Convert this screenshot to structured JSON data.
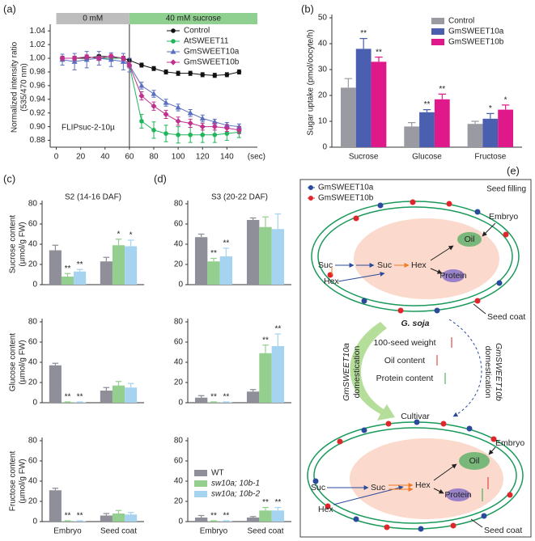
{
  "chart_data": [
    {
      "type": "line",
      "panel_label": "(a)",
      "ylabel": [
        "Normalized intensity ratio",
        "(535/470 nm)"
      ],
      "xlabel": "(sec)",
      "annotation": "FLIPsuc-2-10µ",
      "bands": [
        {
          "label": "0 mM",
          "from": 0,
          "to": 60,
          "color": "#bdbdbd"
        },
        {
          "label": "40 mM sucrose",
          "from": 60,
          "to": 165,
          "color": "#8fcf8f"
        }
      ],
      "x": [
        5,
        15,
        25,
        35,
        45,
        55,
        60,
        70,
        80,
        90,
        100,
        110,
        120,
        130,
        140,
        150
      ],
      "xlim": [
        -5,
        165
      ],
      "xticks": [
        0,
        20,
        40,
        60,
        80,
        100,
        120,
        140
      ],
      "ylim": [
        0.87,
        1.045
      ],
      "yticks": [
        0.88,
        {
          "value": 0.9,
          "label": "0.90"
        },
        0.92,
        0.94,
        0.96,
        0.98,
        {
          "value": 1.0,
          "label": "1.00"
        },
        1.02,
        1.04
      ],
      "legend": "upper right",
      "series": [
        {
          "name": "Control",
          "color": "#111111",
          "marker": "circle",
          "values": [
            1.0,
            1.0,
            1.0,
            1.003,
            1.002,
            1.0,
            0.997,
            0.99,
            0.985,
            0.98,
            0.978,
            0.978,
            0.976,
            0.975,
            0.976,
            0.98
          ],
          "errors": [
            0.002,
            0.002,
            0.002,
            0.002,
            0.002,
            0.002,
            0.002,
            0.003,
            0.003,
            0.003,
            0.003,
            0.003,
            0.003,
            0.003,
            0.003,
            0.003
          ]
        },
        {
          "name": "AtSWEET11",
          "color": "#1fb55a",
          "marker": "circle",
          "values": [
            1.0,
            1.0,
            1.002,
            1.0,
            1.0,
            1.0,
            0.99,
            0.908,
            0.895,
            0.89,
            0.888,
            0.888,
            0.888,
            0.888,
            0.89,
            0.892
          ],
          "errors": [
            0.003,
            0.003,
            0.002,
            0.003,
            0.002,
            0.003,
            0.004,
            0.01,
            0.012,
            0.012,
            0.012,
            0.011,
            0.011,
            0.011,
            0.01,
            0.008
          ]
        },
        {
          "name": "GmSWEET10a",
          "color": "#5a6fc0",
          "marker": "triangle",
          "values": [
            0.998,
            0.995,
            0.998,
            1.0,
            0.998,
            0.995,
            0.99,
            0.96,
            0.948,
            0.935,
            0.928,
            0.92,
            0.912,
            0.907,
            0.902,
            0.9
          ],
          "errors": [
            0.008,
            0.012,
            0.012,
            0.01,
            0.01,
            0.012,
            0.01,
            0.005,
            0.005,
            0.005,
            0.005,
            0.005,
            0.005,
            0.004,
            0.004,
            0.004
          ]
        },
        {
          "name": "GmSWEET10b",
          "color": "#c2308f",
          "marker": "diamond",
          "values": [
            1.0,
            1.0,
            1.002,
            1.0,
            1.003,
            1.0,
            0.99,
            0.945,
            0.93,
            0.918,
            0.908,
            0.905,
            0.9,
            0.9,
            0.898,
            0.895
          ],
          "errors": [
            0.003,
            0.003,
            0.003,
            0.003,
            0.003,
            0.003,
            0.004,
            0.006,
            0.006,
            0.006,
            0.006,
            0.006,
            0.005,
            0.005,
            0.005,
            0.005
          ]
        }
      ]
    },
    {
      "type": "bar",
      "panel_label": "(b)",
      "ylabel": [
        "Sugar uptake (pmol/oocyte/h)"
      ],
      "categories": [
        "Sucrose",
        "Glucose",
        "Fructose"
      ],
      "ylim": [
        0,
        50
      ],
      "yticks": [
        0,
        10,
        20,
        30,
        40,
        50
      ],
      "legend": "upper right",
      "series": [
        {
          "name": "Control",
          "color": "#9a9aa3",
          "values": [
            23,
            8,
            9
          ],
          "errors": [
            3.5,
            1.5,
            1
          ]
        },
        {
          "name": "GmSWEET10a",
          "color": "#4a5fb0",
          "values": [
            38,
            13.5,
            11
          ],
          "errors": [
            4,
            1,
            2
          ],
          "annotations": [
            "**",
            "**",
            "*"
          ]
        },
        {
          "name": "GmSWEET10b",
          "color": "#e0198a",
          "values": [
            33,
            18.5,
            14.5
          ],
          "errors": [
            1.8,
            2,
            1.8
          ],
          "annotations": [
            "**",
            "**",
            "*"
          ]
        }
      ]
    },
    {
      "type": "bar",
      "panel_label": "(c)",
      "title": "S2 (14-16 DAF)",
      "ylabel": [
        "Sucrose content",
        "(µmol/g FW)"
      ],
      "ylim": [
        0,
        80
      ],
      "yticks": [
        0,
        20,
        40,
        60,
        80
      ],
      "series": [
        {
          "color": "#8e8f99",
          "values": [
            34,
            23
          ],
          "errors": [
            5,
            4
          ]
        },
        {
          "color": "#95cf8f",
          "values": [
            8,
            39
          ],
          "errors": [
            3,
            6
          ],
          "annotations": [
            "**",
            "*"
          ]
        },
        {
          "color": "#a6d4f0",
          "values": [
            13,
            38
          ],
          "errors": [
            2,
            6
          ],
          "annotations": [
            "**",
            "*"
          ]
        }
      ]
    },
    {
      "type": "bar",
      "ylabel": [
        "Glucose content",
        "(µmol/g FW)"
      ],
      "ylim": [
        0,
        80
      ],
      "yticks": [
        0,
        20,
        40,
        60,
        80
      ],
      "series": [
        {
          "color": "#8e8f99",
          "values": [
            37,
            12
          ],
          "errors": [
            2,
            3
          ]
        },
        {
          "color": "#95cf8f",
          "values": [
            0.5,
            17
          ],
          "errors": [
            0.3,
            4
          ],
          "annotations": [
            "**",
            null
          ]
        },
        {
          "color": "#a6d4f0",
          "values": [
            0.5,
            15
          ],
          "errors": [
            0.3,
            4
          ],
          "annotations": [
            "**",
            null
          ]
        }
      ]
    },
    {
      "type": "bar",
      "ylabel": [
        "Fructose content",
        "(µmol/g FW)"
      ],
      "categories": [
        "Embryo",
        "Seed coat"
      ],
      "ylim": [
        0,
        80
      ],
      "yticks": [
        0,
        20,
        40,
        60,
        80
      ],
      "series": [
        {
          "color": "#8e8f99",
          "values": [
            31,
            6
          ],
          "errors": [
            2,
            2
          ]
        },
        {
          "color": "#95cf8f",
          "values": [
            0.5,
            8
          ],
          "errors": [
            0.3,
            3
          ],
          "annotations": [
            "**",
            null
          ]
        },
        {
          "color": "#a6d4f0",
          "values": [
            0.5,
            7
          ],
          "errors": [
            0.3,
            2
          ],
          "annotations": [
            "**",
            null
          ]
        }
      ]
    },
    {
      "type": "bar",
      "panel_label": "(d)",
      "title": "S3 (20-22 DAF)",
      "ylim": [
        0,
        80
      ],
      "yticks": [
        0,
        20,
        40,
        60,
        80
      ],
      "series": [
        {
          "color": "#8e8f99",
          "values": [
            47,
            64
          ],
          "errors": [
            3,
            2
          ]
        },
        {
          "color": "#95cf8f",
          "values": [
            23,
            57
          ],
          "errors": [
            3,
            10
          ],
          "annotations": [
            "**",
            null
          ]
        },
        {
          "color": "#a6d4f0",
          "values": [
            28,
            55
          ],
          "errors": [
            8,
            15
          ],
          "annotations": [
            "**",
            null
          ]
        }
      ]
    },
    {
      "type": "bar",
      "ylim": [
        0,
        80
      ],
      "yticks": [
        0,
        20,
        40,
        60,
        80
      ],
      "series": [
        {
          "color": "#8e8f99",
          "values": [
            5,
            11
          ],
          "errors": [
            2,
            2
          ]
        },
        {
          "color": "#95cf8f",
          "values": [
            0.5,
            49
          ],
          "errors": [
            0.3,
            8
          ],
          "annotations": [
            "**",
            "**"
          ]
        },
        {
          "color": "#a6d4f0",
          "values": [
            0.5,
            56
          ],
          "errors": [
            0.3,
            12
          ],
          "annotations": [
            "**",
            "**"
          ]
        }
      ]
    },
    {
      "type": "bar",
      "categories": [
        "Embryo",
        "Seed coat"
      ],
      "ylim": [
        0,
        80
      ],
      "yticks": [
        0,
        20,
        40,
        60,
        80
      ],
      "legend": "upper left",
      "series": [
        {
          "name": "WT",
          "color": "#8e8f99",
          "values": [
            4,
            4
          ],
          "errors": [
            2,
            1
          ]
        },
        {
          "name": "sw10a; 10b-1",
          "color": "#95cf8f",
          "values": [
            0.5,
            11
          ],
          "errors": [
            0.3,
            3
          ],
          "annotations": [
            "**",
            "**"
          ]
        },
        {
          "name": "sw10a; 10b-2",
          "color": "#a6d4f0",
          "values": [
            0.5,
            11
          ],
          "errors": [
            0.3,
            3
          ],
          "annotations": [
            "**",
            "**"
          ]
        }
      ]
    }
  ],
  "diagram": {
    "panel_label": "(e)",
    "legend": [
      "GmSWEET10a",
      "GmSWEET10b"
    ],
    "stage": "Seed filling",
    "top_seed": {
      "embryo": "Embryo",
      "suc_out": "Suc",
      "hex_out": "Hex",
      "suc_in": "Suc",
      "hex_in": "Hex",
      "oil": "Oil",
      "protein": "Protein",
      "seed_coat": "Seed coat"
    },
    "wild": "G. soja",
    "traits": [
      "100-seed weight",
      "Oil content",
      "Protein content"
    ],
    "domestication_a": [
      "GmSWEET10a",
      "domestication"
    ],
    "domestication_b": [
      "GmSWEET10b",
      "domestication"
    ],
    "cultivar": "Cultivar",
    "bottom_seed": {
      "embryo": "Embryo",
      "suc_out": "Suc",
      "hex_out": "Hex",
      "suc_in": "Suc",
      "hex_in": "Hex",
      "oil": "Oil",
      "protein": "Protein",
      "seed_coat": "Seed coat"
    }
  }
}
